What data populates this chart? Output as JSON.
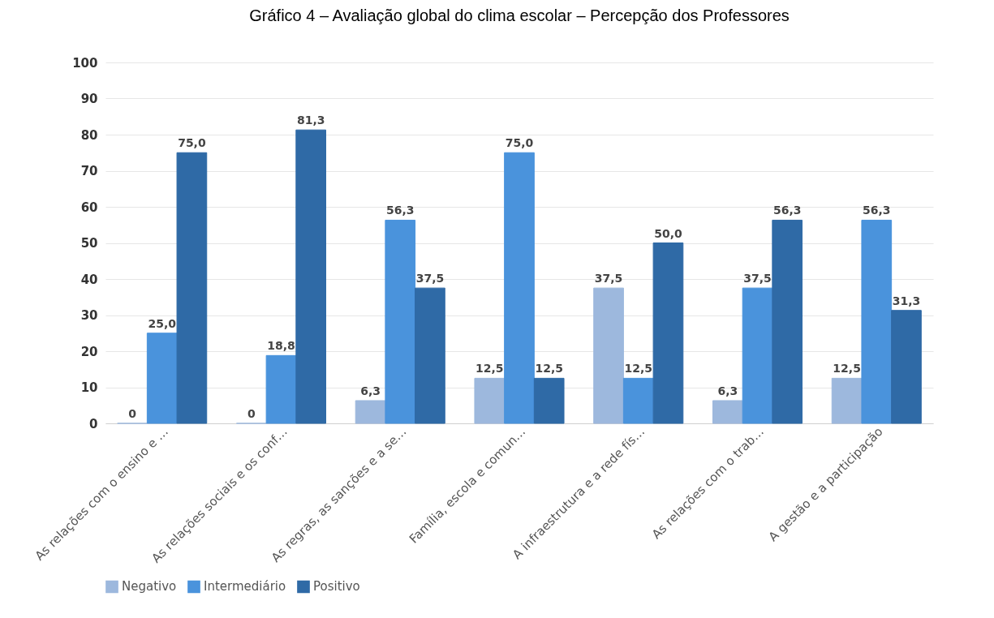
{
  "chart_data": {
    "type": "bar",
    "title": "Gráfico 4 – Avaliação global do clima escolar – Percepção dos Professores",
    "categories": [
      "As relações com o ensino e …",
      "As relações sociais e os conf…",
      "As regras, as sanções e a se…",
      "Família, escola e comun…",
      "A infraestrutura e a rede fís…",
      "As relações com o trab…",
      "A gestão e a participação"
    ],
    "series": [
      {
        "name": "Negativo",
        "color": "#9db8dd",
        "values": [
          0,
          0,
          6.3,
          12.5,
          37.5,
          6.3,
          12.5
        ],
        "value_labels": [
          "0",
          "0",
          "6,3",
          "12,5",
          "37,5",
          "6,3",
          "12,5"
        ]
      },
      {
        "name": "Intermediário",
        "color": "#4a93dc",
        "values": [
          25.0,
          18.8,
          56.3,
          75.0,
          12.5,
          37.5,
          56.3
        ],
        "value_labels": [
          "25,0",
          "18,8",
          "56,3",
          "75,0",
          "12,5",
          "37,5",
          "56,3"
        ]
      },
      {
        "name": "Positivo",
        "color": "#2f6aa6",
        "values": [
          75.0,
          81.3,
          37.5,
          12.5,
          50.0,
          56.3,
          31.3
        ],
        "value_labels": [
          "75,0",
          "81,3",
          "37,5",
          "12,5",
          "50,0",
          "56,3",
          "31,3"
        ]
      }
    ],
    "ylim": [
      0,
      100
    ],
    "yticks": [
      0,
      10,
      20,
      30,
      40,
      50,
      60,
      70,
      80,
      90,
      100
    ],
    "grid": "y",
    "legend": "bottom"
  }
}
